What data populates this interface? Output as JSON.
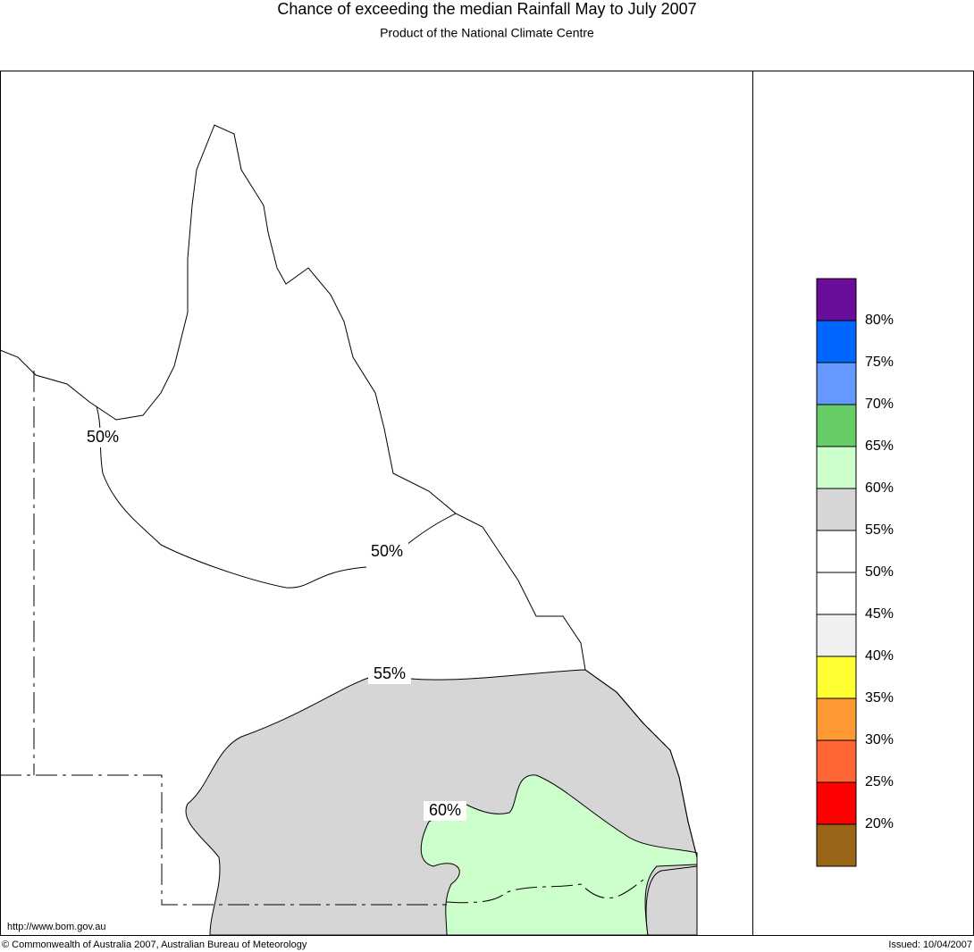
{
  "header": {
    "title": "Chance of exceeding the median Rainfall May to July 2007",
    "subtitle": "Product of the National Climate Centre"
  },
  "map": {
    "contour_labels": [
      "50%",
      "50%",
      "55%",
      "60%"
    ]
  },
  "legend": {
    "colors": [
      "#6a0d9b",
      "#0066ff",
      "#6699ff",
      "#66cc66",
      "#ccffcc",
      "#d6d6d6",
      "#ffffff",
      "#ffffff",
      "#f0f0f0",
      "#ffff33",
      "#ff9933",
      "#ff6633",
      "#ff0000",
      "#996619"
    ],
    "labels": [
      "80%",
      "75%",
      "70%",
      "65%",
      "60%",
      "55%",
      "50%",
      "45%",
      "40%",
      "35%",
      "30%",
      "25%",
      "20%"
    ]
  },
  "footer": {
    "url": "http://www.bom.gov.au",
    "copyright": "© Commonwealth of Australia 2007, Australian Bureau of Meteorology",
    "issued": "Issued: 10/04/2007"
  }
}
